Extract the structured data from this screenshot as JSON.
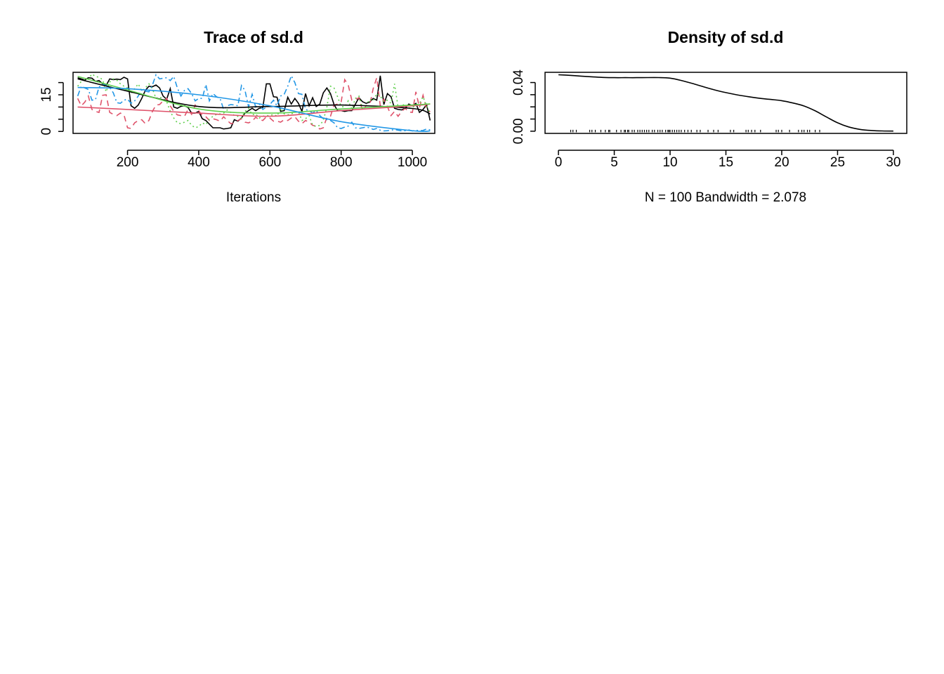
{
  "chart_data": [
    {
      "type": "line",
      "title": "Trace of sd.d",
      "xlabel": "Iterations",
      "ylabel": "",
      "xlim": [
        47,
        1063
      ],
      "ylim": [
        -0.8,
        24.2
      ],
      "x_ticks": [
        200,
        400,
        600,
        800,
        1000
      ],
      "y_ticks": [
        0,
        5,
        10,
        15,
        20
      ],
      "y_tick_labels": [
        "0",
        "",
        "",
        "15",
        ""
      ],
      "grid": false,
      "legend": "none",
      "x_start": 60,
      "x_step": 10,
      "series": [
        {
          "color": "#000000",
          "dash": "solid",
          "values": [
            22,
            21.5,
            21,
            22,
            21.8,
            20.5,
            20.8,
            19.5,
            18.8,
            21.5,
            21.2,
            21.4,
            21.2,
            22.2,
            21.5,
            10.5,
            9.5,
            10.8,
            13.5,
            16.8,
            18.5,
            18.3,
            19,
            17.8,
            14.5,
            13.2,
            17.5,
            10,
            9.5,
            10.3,
            10.5,
            9.8,
            7.5,
            7.5,
            8.2,
            5.2,
            4.5,
            3,
            1.5,
            1.5,
            1.5,
            1,
            1.2,
            1.5,
            4.8,
            4.2,
            5.5,
            7.5,
            8.5,
            9.5,
            8.5,
            9.5,
            9.8,
            19.5,
            19.5,
            14.2,
            14,
            8.2,
            8.5,
            14,
            11.2,
            13.5,
            11.5,
            8.2,
            15.5,
            10.5,
            13.8,
            10.2,
            11.2,
            15.8,
            17.8,
            15.5,
            11,
            8.5,
            8.5,
            8.2,
            8.5,
            8.5,
            11.2,
            13.8,
            12.2,
            11.5,
            12,
            13.5,
            12.8,
            22.8,
            11,
            15.5,
            14.2,
            9.5,
            9,
            8.8,
            9.5,
            11.2,
            10.5,
            11.5,
            7.8,
            9,
            11,
            4.5
          ]
        },
        {
          "color": "#DF536B",
          "dash": "8,6",
          "values": [
            13.5,
            10.5,
            12,
            14.5,
            9,
            8.2,
            7.8,
            14.8,
            15,
            7.8,
            7,
            6.5,
            7.5,
            6.8,
            1.5,
            1.2,
            3.5,
            4.5,
            4.8,
            3.2,
            4.5,
            8.2,
            10.8,
            11,
            12.5,
            13.5,
            10.5,
            8.2,
            6.8,
            6.5,
            6.2,
            9,
            7,
            10.8,
            8.5,
            6.5,
            6,
            4.5,
            5.2,
            4.8,
            4.2,
            6,
            4.5,
            3.2,
            3.5,
            4.5,
            5.2,
            3.8,
            3.5,
            4.2,
            5.8,
            4.8,
            4.5,
            6,
            5.5,
            4.2,
            4.2,
            3.8,
            4.8,
            4.5,
            5.5,
            6,
            4.2,
            3.2,
            4.5,
            3.8,
            2.5,
            2.2,
            1,
            1.5,
            5.8,
            6.2,
            10.8,
            11.2,
            12,
            21.2,
            19,
            12.8,
            13,
            13.8,
            8.5,
            10.5,
            10.5,
            17.5,
            22,
            10.5,
            13.2,
            10.2,
            6.5,
            8.2,
            6.2,
            8.2,
            9.5,
            8,
            7.8,
            16.2,
            9.8,
            14.8,
            9.2,
            8
          ]
        },
        {
          "color": "#61D04F",
          "dash": "2,4",
          "values": [
            18.5,
            20.5,
            21,
            21.5,
            23.5,
            22.5,
            22.2,
            21.2,
            16.2,
            20.2,
            21.5,
            21,
            19.5,
            18.5,
            17.8,
            15.5,
            17.5,
            19.5,
            16.5,
            17.8,
            19.5,
            17.5,
            13.5,
            14,
            13.5,
            12.2,
            8.2,
            5.5,
            3.5,
            3.2,
            3.8,
            4.5,
            2.5,
            1.5,
            2,
            3.5,
            2.8,
            5,
            6.2,
            7,
            7.2,
            7.5,
            8.8,
            7.8,
            6.5,
            6.2,
            5.5,
            8.2,
            9.5,
            6.8,
            7.2,
            5.5,
            6.2,
            6.5,
            6.5,
            7,
            6.2,
            9.5,
            7.2,
            6.8,
            7.2,
            7.8,
            8.2,
            4.5,
            5.2,
            6.5,
            2.5,
            2,
            2.5,
            4.5,
            10,
            18.5,
            17.8,
            14.2,
            10.2,
            10,
            12.5,
            9.2,
            13.5,
            14.5,
            9.5,
            10.5,
            13.2,
            12.5,
            15.5,
            14.5,
            12.2,
            12.8,
            11.5,
            19.5,
            9.8,
            10.5,
            11.2,
            9.5,
            9.8,
            10.8,
            11.5,
            14.2,
            10.5,
            7.5
          ]
        },
        {
          "color": "#2297E6",
          "dash": "8,4,2,4",
          "values": [
            14.5,
            18.5,
            17.8,
            17.2,
            12.8,
            13,
            18.2,
            19.2,
            18.8,
            18,
            15.8,
            11.8,
            11.5,
            12.8,
            13.2,
            11.5,
            12.5,
            14.5,
            17,
            16.5,
            16.2,
            19,
            23.2,
            21.5,
            21.8,
            22,
            20.8,
            22.5,
            17.8,
            14.5,
            16.8,
            17.5,
            15.5,
            12.5,
            13.5,
            13.5,
            19.2,
            12.5,
            15.5,
            14.2,
            13.5,
            9,
            10.5,
            11,
            10.8,
            10.5,
            18.8,
            16.8,
            10,
            15.2,
            10,
            11.2,
            9,
            10,
            11,
            12.8,
            10.5,
            14.5,
            15.2,
            18.5,
            22.8,
            20,
            15.5,
            15.2,
            9,
            8.5,
            7.5,
            8.5,
            6.5,
            5.2,
            4.8,
            4.5,
            3.5,
            1.5,
            1.2,
            1.8,
            2.2,
            3.8,
            1.5,
            1.2,
            1.5,
            1.8,
            1.5,
            0.8,
            1.2,
            0.5,
            0.2,
            0.3,
            0.5,
            0.8,
            0.5,
            0.2,
            0.3,
            0.6,
            0.2,
            0.5,
            0.3,
            0.4,
            1,
            0.6
          ]
        }
      ],
      "smooth_lines": [
        {
          "color": "#000000",
          "x": [
            60,
            200,
            400,
            600,
            800,
            1000,
            1050
          ],
          "y": [
            21.5,
            16.5,
            10.2,
            10.2,
            10.8,
            9.4,
            7.2
          ]
        },
        {
          "color": "#DF536B",
          "x": [
            60,
            200,
            400,
            600,
            800,
            1000,
            1050
          ],
          "y": [
            10,
            9,
            7.5,
            6.2,
            8.5,
            10.5,
            11.2
          ]
        },
        {
          "color": "#61D04F",
          "x": [
            60,
            200,
            400,
            600,
            800,
            1000,
            1050
          ],
          "y": [
            22.5,
            17,
            9.2,
            7.5,
            9.2,
            10.8,
            11.3
          ]
        },
        {
          "color": "#2297E6",
          "x": [
            60,
            200,
            400,
            600,
            800,
            1000,
            1050
          ],
          "y": [
            18,
            17.5,
            15,
            10.5,
            4,
            0.3,
            0.2
          ]
        }
      ]
    },
    {
      "type": "line",
      "title": "Density of sd.d",
      "xlabel": "N = 100   Bandwidth = 2.078",
      "ylabel": "",
      "xlim": [
        -1.2,
        31.2
      ],
      "ylim": [
        -0.0018,
        0.0484
      ],
      "x_ticks": [
        0,
        5,
        10,
        15,
        20,
        25,
        30
      ],
      "y_ticks": [
        0,
        0.01,
        0.02,
        0.03,
        0.04
      ],
      "y_tick_labels": [
        "0.00",
        "",
        "",
        "",
        "0.04"
      ],
      "grid": false,
      "legend": "none",
      "density_curve": {
        "x": [
          0,
          1,
          2,
          3,
          4,
          5,
          6,
          7,
          8,
          9,
          10,
          11,
          12,
          13,
          14,
          15,
          16,
          17,
          18,
          19,
          20,
          21,
          22,
          23,
          24,
          25,
          26,
          27,
          28,
          29,
          30
        ],
        "y": [
          0.0464,
          0.0459,
          0.0453,
          0.0447,
          0.0442,
          0.044,
          0.044,
          0.044,
          0.0441,
          0.0441,
          0.0436,
          0.0417,
          0.0392,
          0.0365,
          0.0339,
          0.0317,
          0.0299,
          0.0284,
          0.0271,
          0.0261,
          0.0251,
          0.0232,
          0.0207,
          0.0167,
          0.0117,
          0.0069,
          0.0035,
          0.0015,
          0.0006,
          0.0002,
          0.0001
        ]
      },
      "rug": [
        1.1,
        1.3,
        1.6,
        2.8,
        3,
        3.3,
        3.8,
        4.2,
        4.5,
        4.6,
        5.2,
        5.6,
        5.9,
        6,
        6.2,
        6.3,
        6.6,
        6.8,
        7.1,
        7.3,
        7.5,
        7.7,
        7.9,
        8.1,
        8.4,
        8.6,
        8.9,
        9.1,
        9.3,
        9.6,
        9.8,
        9.9,
        10,
        10.2,
        10.4,
        10.6,
        10.8,
        11,
        11.3,
        11.6,
        11.9,
        12.4,
        12.7,
        13.4,
        13.9,
        14.3,
        15.4,
        15.7,
        16.8,
        17,
        17.3,
        17.6,
        18.1,
        19.5,
        19.7,
        20,
        20.7,
        21.5,
        21.8,
        22,
        22.3,
        22.5,
        23,
        23.4
      ]
    }
  ]
}
